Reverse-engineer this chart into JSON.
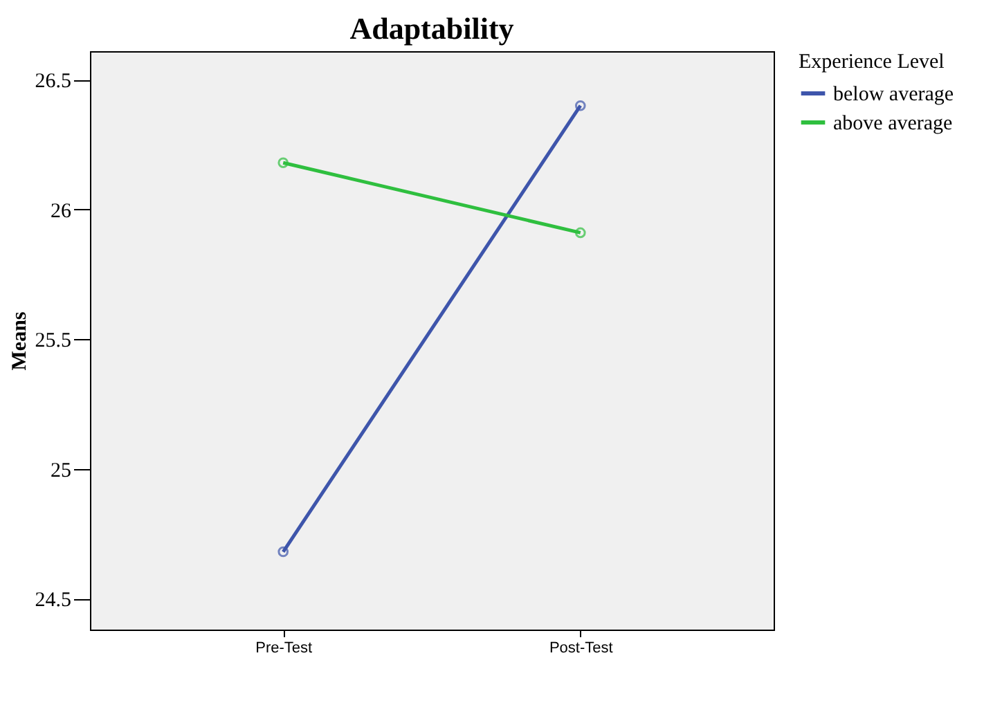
{
  "chart_data": {
    "type": "line",
    "title": "Adaptability",
    "ylabel": "Means",
    "legend_title": "Experience Level",
    "legend": "top right",
    "categories": [
      "Pre-Test",
      "Post-Test"
    ],
    "series": [
      {
        "name": "below average",
        "color": "#3e55ab",
        "values": [
          24.68,
          26.4
        ]
      },
      {
        "name": "above average",
        "color": "#2fbf3f",
        "values": [
          26.18,
          25.91
        ]
      }
    ],
    "ylim": [
      24.38,
      26.61
    ],
    "yticks": [
      24.5,
      25,
      25.5,
      26,
      26.5
    ],
    "grid": false,
    "marker": "circle",
    "line_style": "solid"
  }
}
